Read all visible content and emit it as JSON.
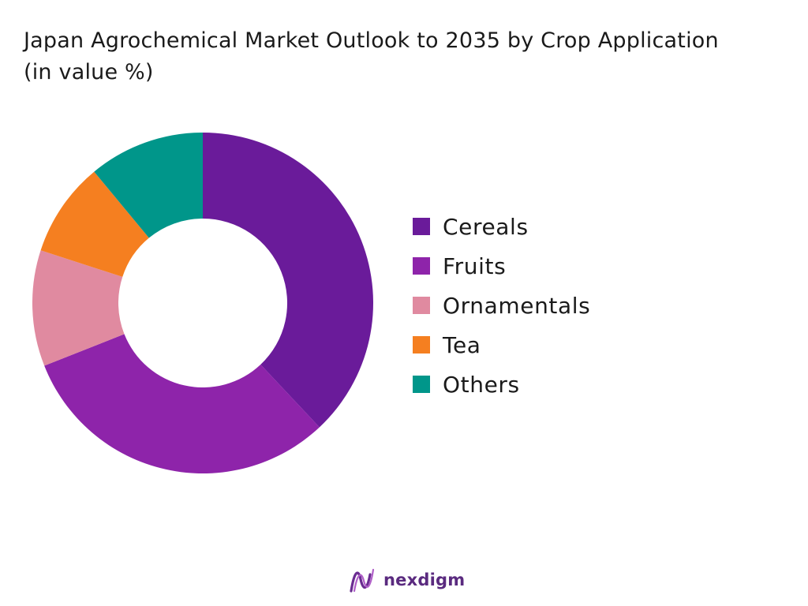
{
  "chart_data": {
    "type": "pie",
    "title": "Japan Agrochemical Market Outlook to 2035 by Crop Application (in value %)",
    "donut": true,
    "legend_position": "right",
    "categories": [
      "Cereals",
      "Fruits",
      "Ornamentals",
      "Tea",
      "Others"
    ],
    "values": [
      38,
      31,
      11,
      9,
      11
    ],
    "colors": [
      "#6a1b9a",
      "#8e24aa",
      "#e08aa0",
      "#f57f20",
      "#00968a"
    ]
  },
  "branding": {
    "name": "nexdigm",
    "logo_icon": "nexdigm-logo-icon",
    "color": "#5a2a7f"
  }
}
